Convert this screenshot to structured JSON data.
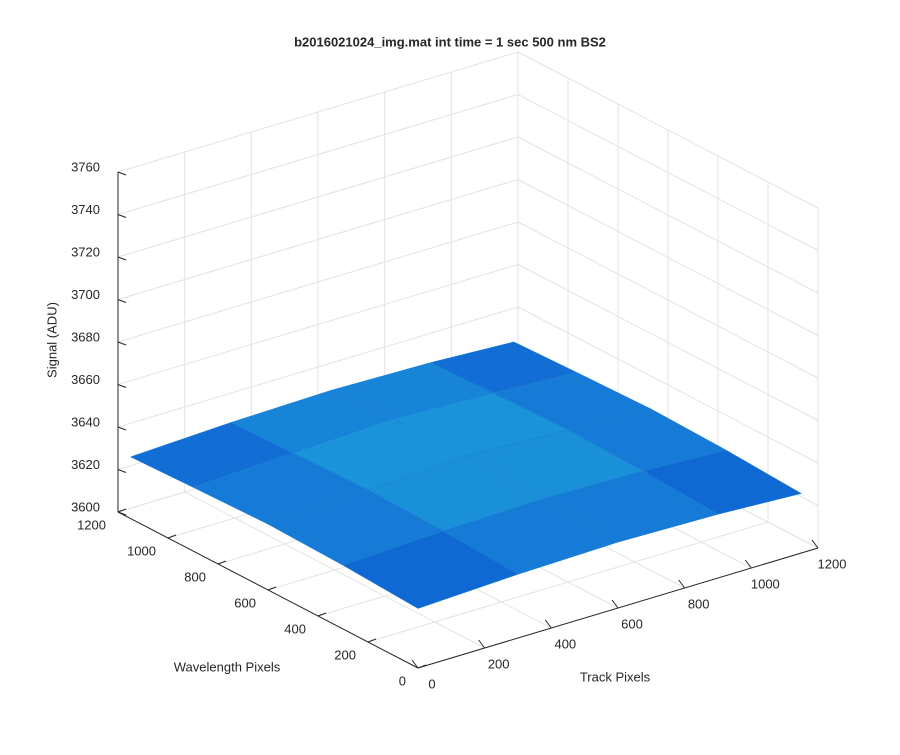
{
  "chart_data": {
    "type": "surface",
    "title": "b2016021024_img.mat int time = 1 sec  500 nm BS2",
    "x_label": "Track Pixels",
    "y_label": "Wavelength Pixels",
    "z_label": "Signal (ADU)",
    "x": [
      0,
      300,
      600,
      900,
      1150
    ],
    "y": [
      0,
      300,
      600,
      900,
      1150
    ],
    "z": [
      [
        3628,
        3630,
        3631,
        3630,
        3628
      ],
      [
        3630,
        3632,
        3633,
        3632,
        3630
      ],
      [
        3631,
        3633,
        3635,
        3633,
        3631
      ],
      [
        3630,
        3632,
        3634,
        3632,
        3630
      ],
      [
        3629,
        3631,
        3632,
        3631,
        3629
      ]
    ],
    "colormap": [
      "#0a4fd0",
      "#1fa6dc"
    ],
    "xlim": [
      0,
      1200
    ],
    "xticks": [
      0,
      200,
      400,
      600,
      800,
      1000,
      1200
    ],
    "ylim": [
      0,
      1200
    ],
    "yticks": [
      0,
      200,
      400,
      600,
      800,
      1000,
      1200
    ],
    "zlim": [
      3600,
      3760
    ],
    "zticks": [
      3600,
      3620,
      3640,
      3660,
      3680,
      3700,
      3720,
      3740,
      3760
    ],
    "grid": true
  }
}
